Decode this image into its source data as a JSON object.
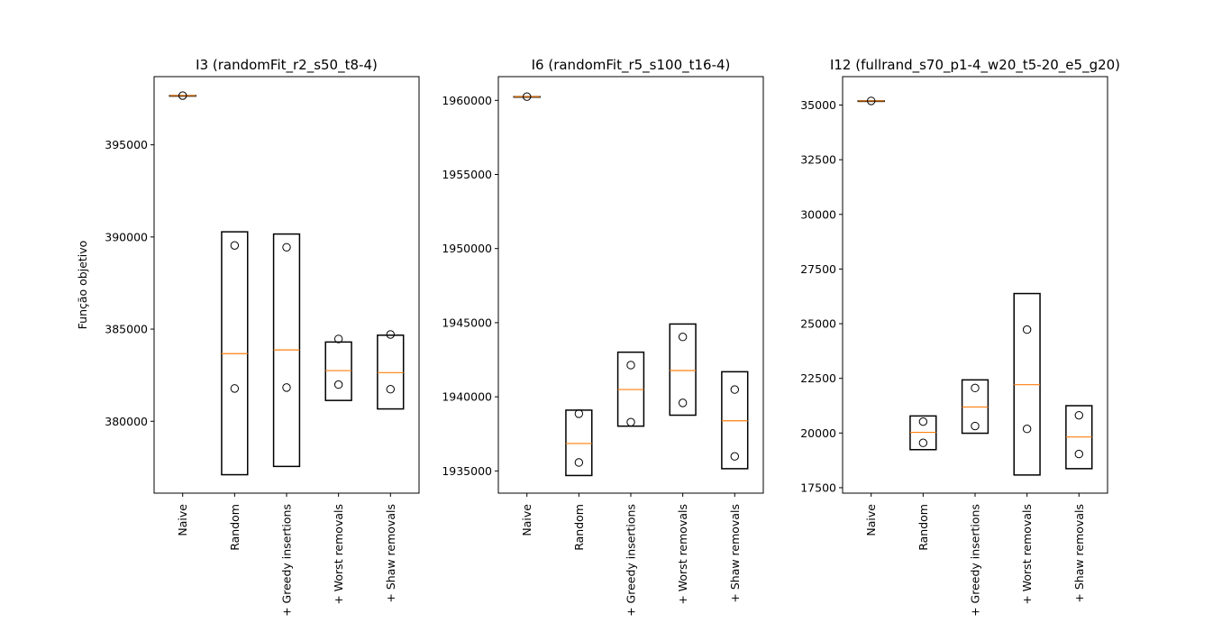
{
  "chart_data": [
    {
      "type": "box",
      "title": "I3 (randomFit_r2_s50_t8-4)",
      "ylabel": "Função objetivo",
      "categories": [
        "Naive",
        "Random",
        "+ Greedy insertions",
        "+ Worst removals",
        "+ Shaw removals"
      ],
      "yticks": [
        380000,
        385000,
        390000,
        395000
      ],
      "ylim": [
        376100,
        398700
      ],
      "boxes": [
        {
          "q1": 397670,
          "median": 397670,
          "q3": 397670,
          "points": [
            397670
          ]
        },
        {
          "q1": 377100,
          "median": 383670,
          "q3": 390280,
          "points": [
            389540,
            381780
          ]
        },
        {
          "q1": 377550,
          "median": 383870,
          "q3": 390160,
          "points": [
            389440,
            381830
          ]
        },
        {
          "q1": 381130,
          "median": 382750,
          "q3": 384300,
          "points": [
            384470,
            381990
          ]
        },
        {
          "q1": 380670,
          "median": 382640,
          "q3": 384670,
          "points": [
            384710,
            381740
          ]
        }
      ]
    },
    {
      "type": "box",
      "title": "I6 (randomFit_r5_s100_t16-4)",
      "ylabel": "",
      "categories": [
        "Naive",
        "Random",
        "+ Greedy insertions",
        "+ Worst removals",
        "+ Shaw removals"
      ],
      "yticks": [
        1935000,
        1940000,
        1945000,
        1950000,
        1955000,
        1960000
      ],
      "ylim": [
        1933500,
        1961600
      ],
      "boxes": [
        {
          "q1": 1960250,
          "median": 1960250,
          "q3": 1960250,
          "points": [
            1960250
          ]
        },
        {
          "q1": 1934690,
          "median": 1936850,
          "q3": 1939100,
          "points": [
            1938860,
            1935570
          ]
        },
        {
          "q1": 1938020,
          "median": 1940490,
          "q3": 1943010,
          "points": [
            1942140,
            1938290
          ]
        },
        {
          "q1": 1938760,
          "median": 1941770,
          "q3": 1944910,
          "points": [
            1944040,
            1939590
          ]
        },
        {
          "q1": 1935150,
          "median": 1938380,
          "q3": 1941690,
          "points": [
            1940490,
            1935980
          ]
        }
      ]
    },
    {
      "type": "box",
      "title": "I12 (fullrand_s70_p1-4_w20_t5-20_e5_g20)",
      "ylabel": "",
      "categories": [
        "Naive",
        "Random",
        "+ Greedy insertions",
        "+ Worst removals",
        "+ Shaw removals"
      ],
      "yticks": [
        17500,
        20000,
        22500,
        25000,
        27500,
        30000,
        32500,
        35000
      ],
      "ylim": [
        17250,
        36300
      ],
      "boxes": [
        {
          "q1": 35190,
          "median": 35190,
          "q3": 35190,
          "points": [
            35190
          ]
        },
        {
          "q1": 19240,
          "median": 20030,
          "q3": 20780,
          "points": [
            20520,
            19550
          ]
        },
        {
          "q1": 19990,
          "median": 21190,
          "q3": 22430,
          "points": [
            22060,
            20320
          ]
        },
        {
          "q1": 18080,
          "median": 22210,
          "q3": 26380,
          "points": [
            24730,
            20190
          ]
        },
        {
          "q1": 18370,
          "median": 19820,
          "q3": 21250,
          "points": [
            20810,
            19040
          ]
        }
      ]
    }
  ]
}
